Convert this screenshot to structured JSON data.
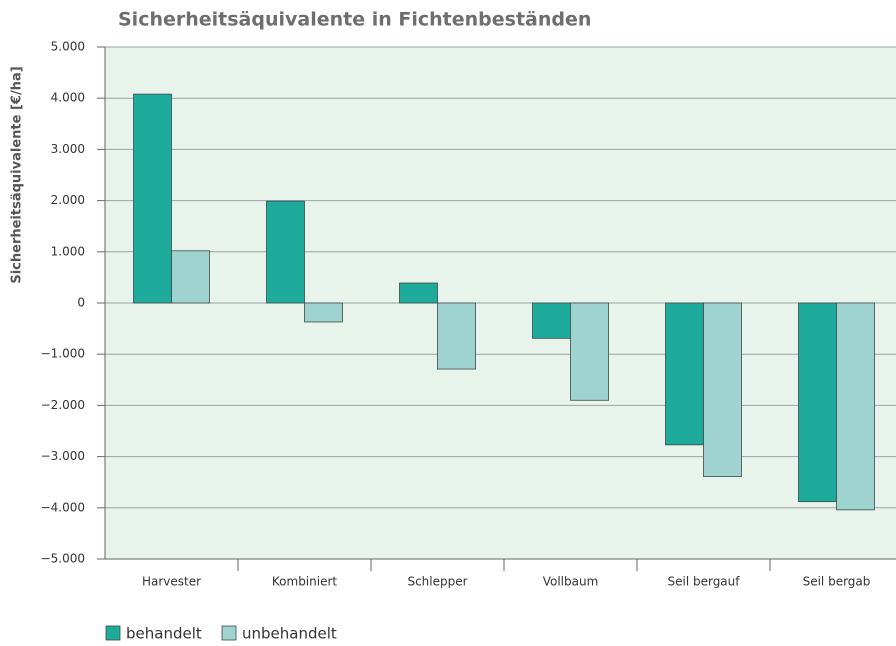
{
  "chart_data": {
    "type": "bar",
    "title": "Sicherheitsäquivalente in Fichtenbeständen",
    "y_label": "Sicherheitsäquivalente [€/ha]",
    "categories": [
      "Harvester",
      "Kombiniert",
      "Schlepper",
      "Vollbaum",
      "Seil bergauf",
      "Seil bergab"
    ],
    "series": [
      {
        "name": "behandelt",
        "color": "#1fab9b",
        "values": [
          4080,
          1990,
          390,
          -690,
          -2770,
          -3880
        ]
      },
      {
        "name": "unbehandelt",
        "color": "#9fd3d0",
        "values": [
          1020,
          -370,
          -1290,
          -1900,
          -3390,
          -4040
        ]
      }
    ],
    "ylim": [
      -5000,
      5000
    ],
    "yticks": [
      {
        "value": -5000,
        "label": "−5.000"
      },
      {
        "value": -4000,
        "label": "−4.000"
      },
      {
        "value": -3000,
        "label": "−3.000"
      },
      {
        "value": -2000,
        "label": "−2.000"
      },
      {
        "value": -1000,
        "label": "−1.000"
      },
      0,
      {
        "value": 1000,
        "label": "1.000"
      },
      {
        "value": 2000,
        "label": "2.000"
      },
      {
        "value": 3000,
        "label": "3.000"
      },
      {
        "value": 4000,
        "label": "4.000"
      },
      {
        "value": 5000,
        "label": "5.000"
      }
    ],
    "grid": true,
    "legend": "bottom-left"
  }
}
